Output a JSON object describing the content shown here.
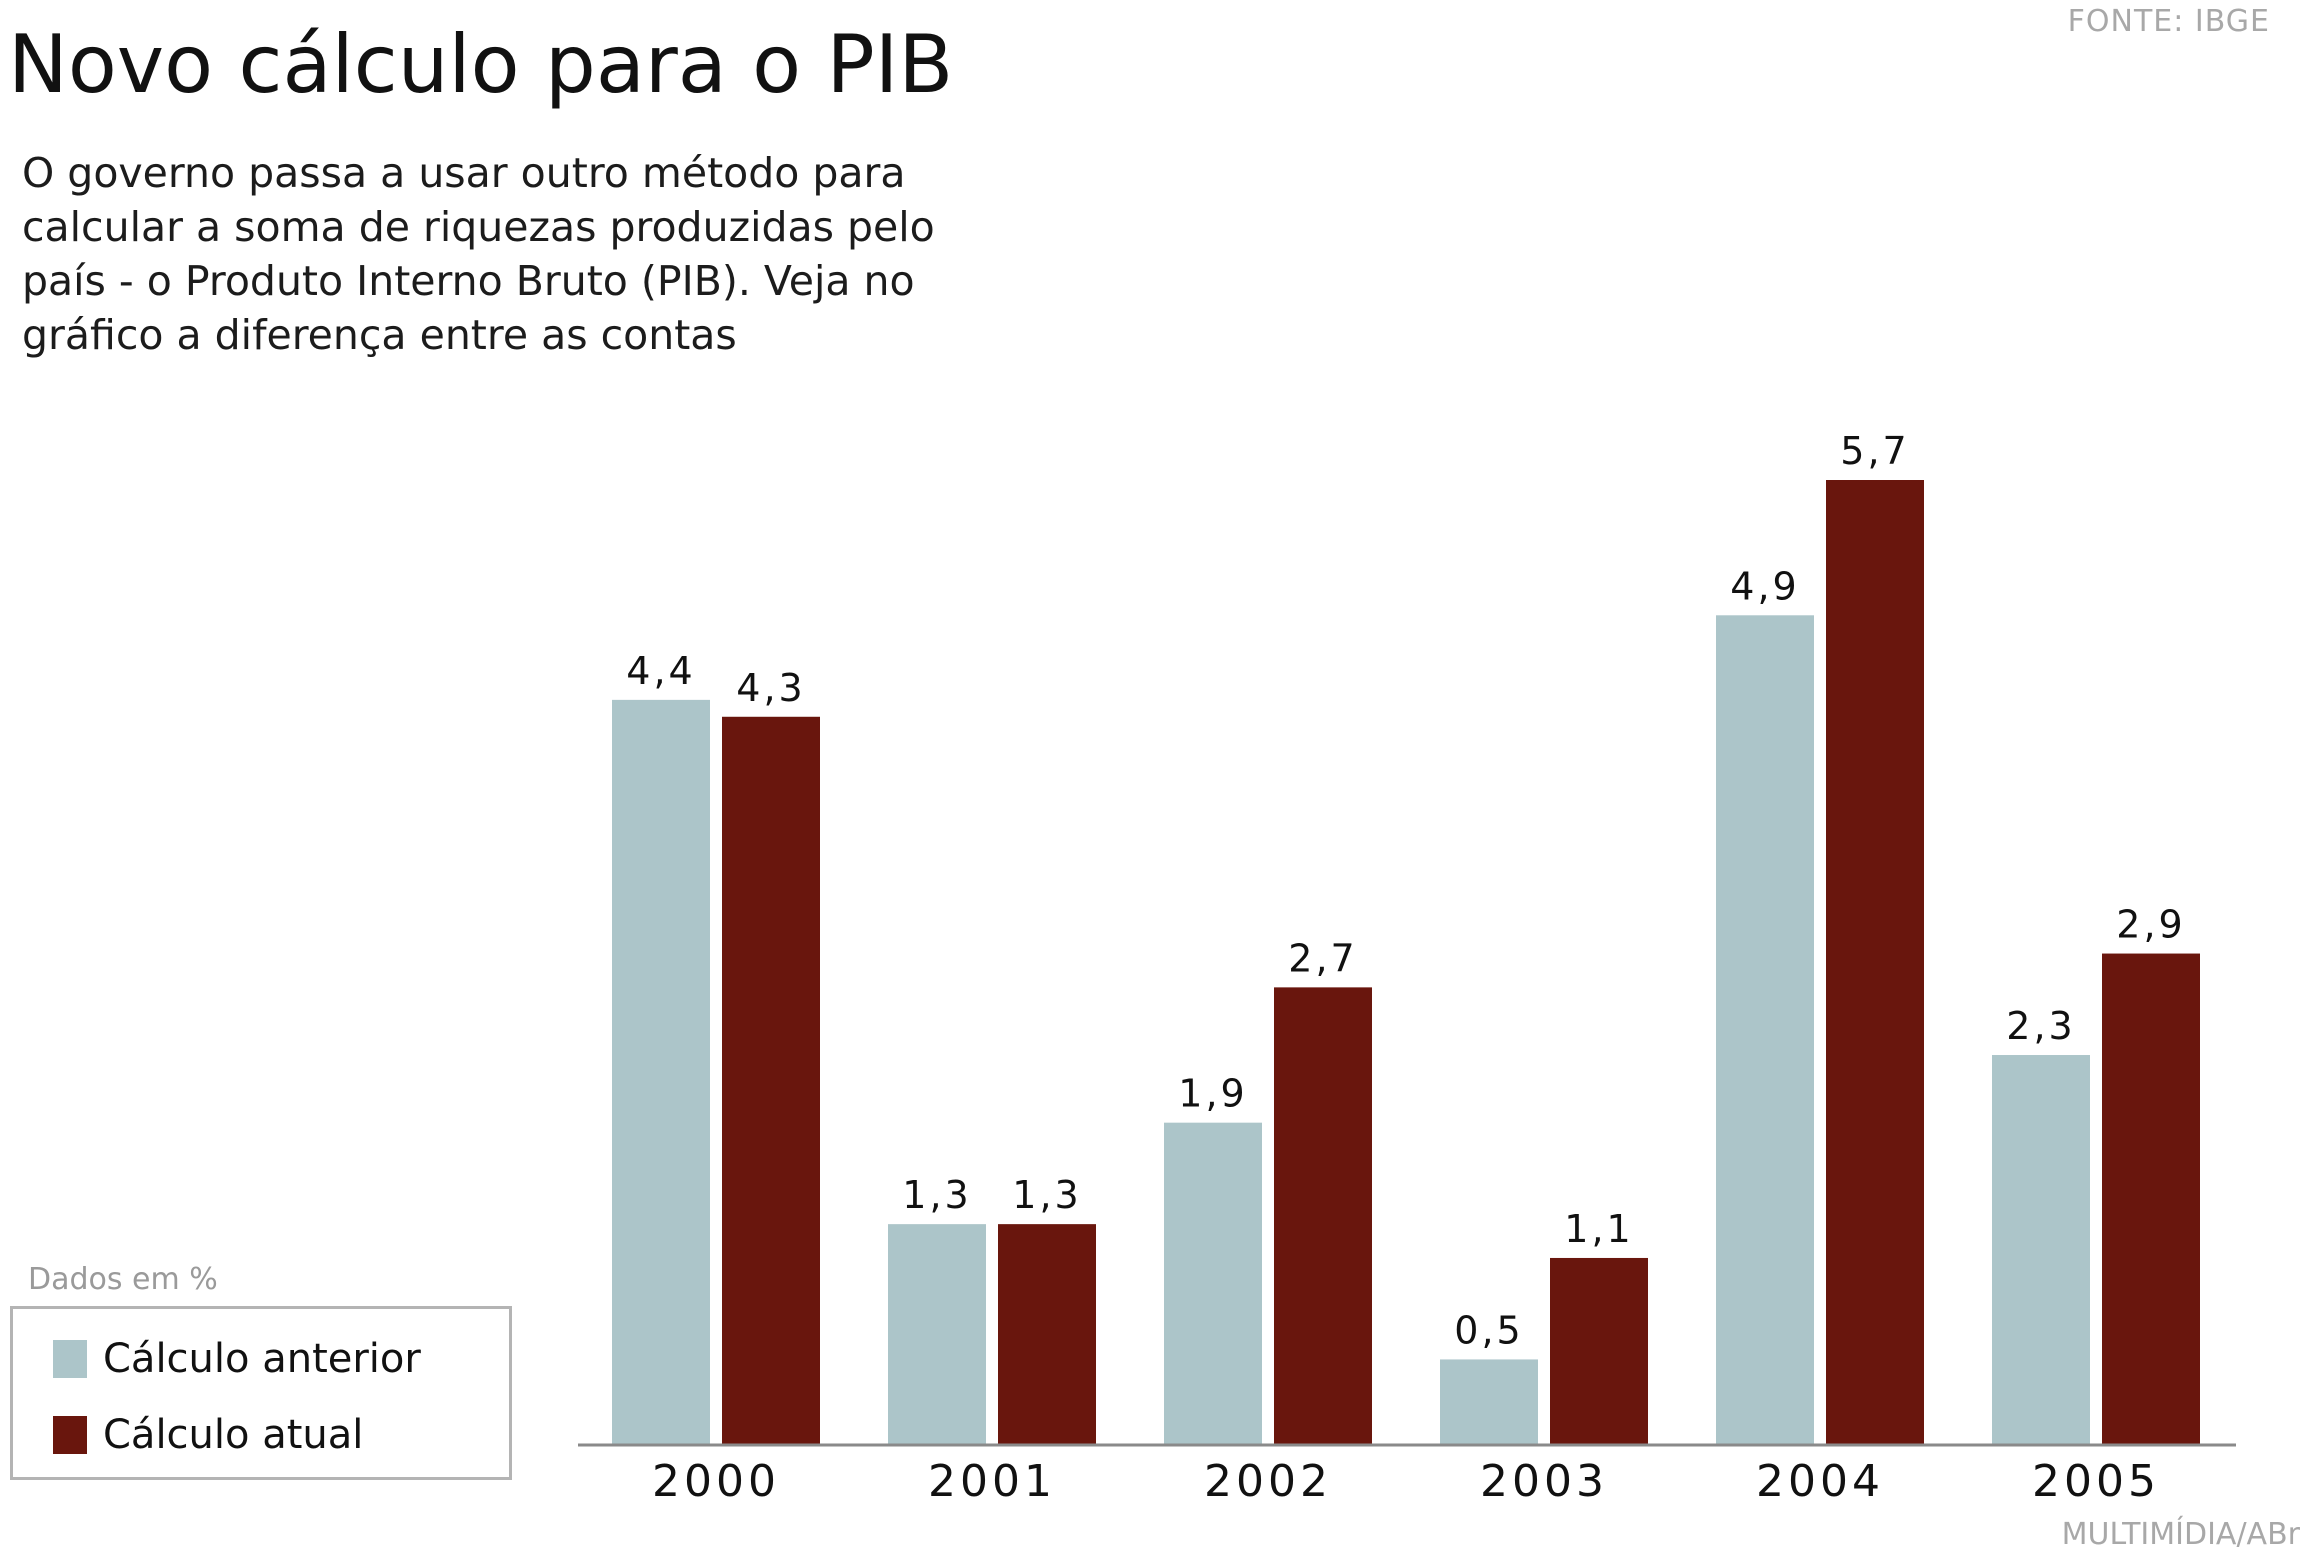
{
  "header": {
    "source": "FONTE: IBGE",
    "title": "Novo cálculo para o PIB",
    "subtitle": "O governo passa a usar outro método para calcular a soma de riquezas produzidas pelo país - o Produto Interno Bruto (PIB). Veja no gráfico a diferença entre as contas"
  },
  "legend": {
    "units_note": "Dados em %",
    "items": [
      {
        "label": "Cálculo anterior",
        "color": "#acc5c9"
      },
      {
        "label": "Cálculo atual",
        "color": "#69160d"
      }
    ]
  },
  "footer": {
    "credit": "MULTIMÍDIA/ABr"
  },
  "chart_data": {
    "type": "bar",
    "categories": [
      "2000",
      "2001",
      "2002",
      "2003",
      "2004",
      "2005"
    ],
    "series": [
      {
        "name": "Cálculo anterior",
        "color": "#acc5c9",
        "values": [
          4.4,
          1.3,
          1.9,
          0.5,
          4.9,
          2.3
        ],
        "labels": [
          "4,4",
          "1,3",
          "1,9",
          "0,5",
          "4,9",
          "2,3"
        ]
      },
      {
        "name": "Cálculo atual",
        "color": "#69160d",
        "values": [
          4.3,
          1.3,
          2.7,
          1.1,
          5.7,
          2.9
        ],
        "labels": [
          "4,3",
          "1,3",
          "2,7",
          "1,1",
          "5,7",
          "2,9"
        ]
      }
    ],
    "ylim": [
      0,
      5.7
    ],
    "grid": false,
    "legend_position": "bottom-left"
  }
}
